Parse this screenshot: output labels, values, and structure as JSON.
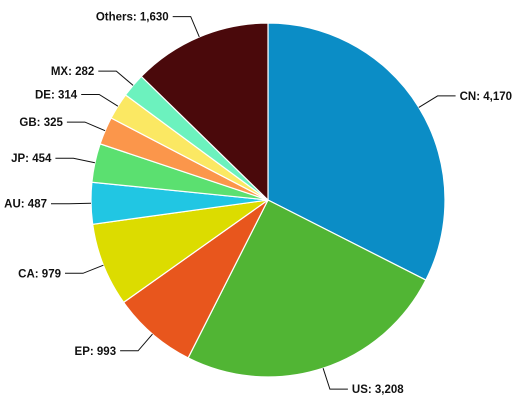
{
  "chart_data": {
    "type": "pie",
    "title": "",
    "start_angle_deg": 0,
    "direction": "clockwise",
    "slices": [
      {
        "label": "CN",
        "value": 4170,
        "display": "CN: 4,170",
        "color": "#0b8dc6",
        "label_side": "right"
      },
      {
        "label": "US",
        "value": 3208,
        "display": "US: 3,208",
        "color": "#51b534",
        "label_side": "right"
      },
      {
        "label": "EP",
        "value": 993,
        "display": "EP: 993",
        "color": "#e8561d",
        "label_side": "left"
      },
      {
        "label": "CA",
        "value": 979,
        "display": "CA: 979",
        "color": "#dcdc00",
        "label_side": "left"
      },
      {
        "label": "AU",
        "value": 487,
        "display": "AU: 487",
        "color": "#21c6e3",
        "label_side": "left"
      },
      {
        "label": "JP",
        "value": 454,
        "display": "JP: 454",
        "color": "#5be070",
        "label_side": "left"
      },
      {
        "label": "GB",
        "value": 325,
        "display": "GB: 325",
        "color": "#fb964b",
        "label_side": "left"
      },
      {
        "label": "DE",
        "value": 314,
        "display": "DE: 314",
        "color": "#fbe863",
        "label_side": "left"
      },
      {
        "label": "MX",
        "value": 282,
        "display": "MX: 282",
        "color": "#6cf2be",
        "label_side": "left"
      },
      {
        "label": "Others",
        "value": 1630,
        "display": "Others: 1,630",
        "color": "#4a090b",
        "label_side": "left"
      }
    ]
  }
}
